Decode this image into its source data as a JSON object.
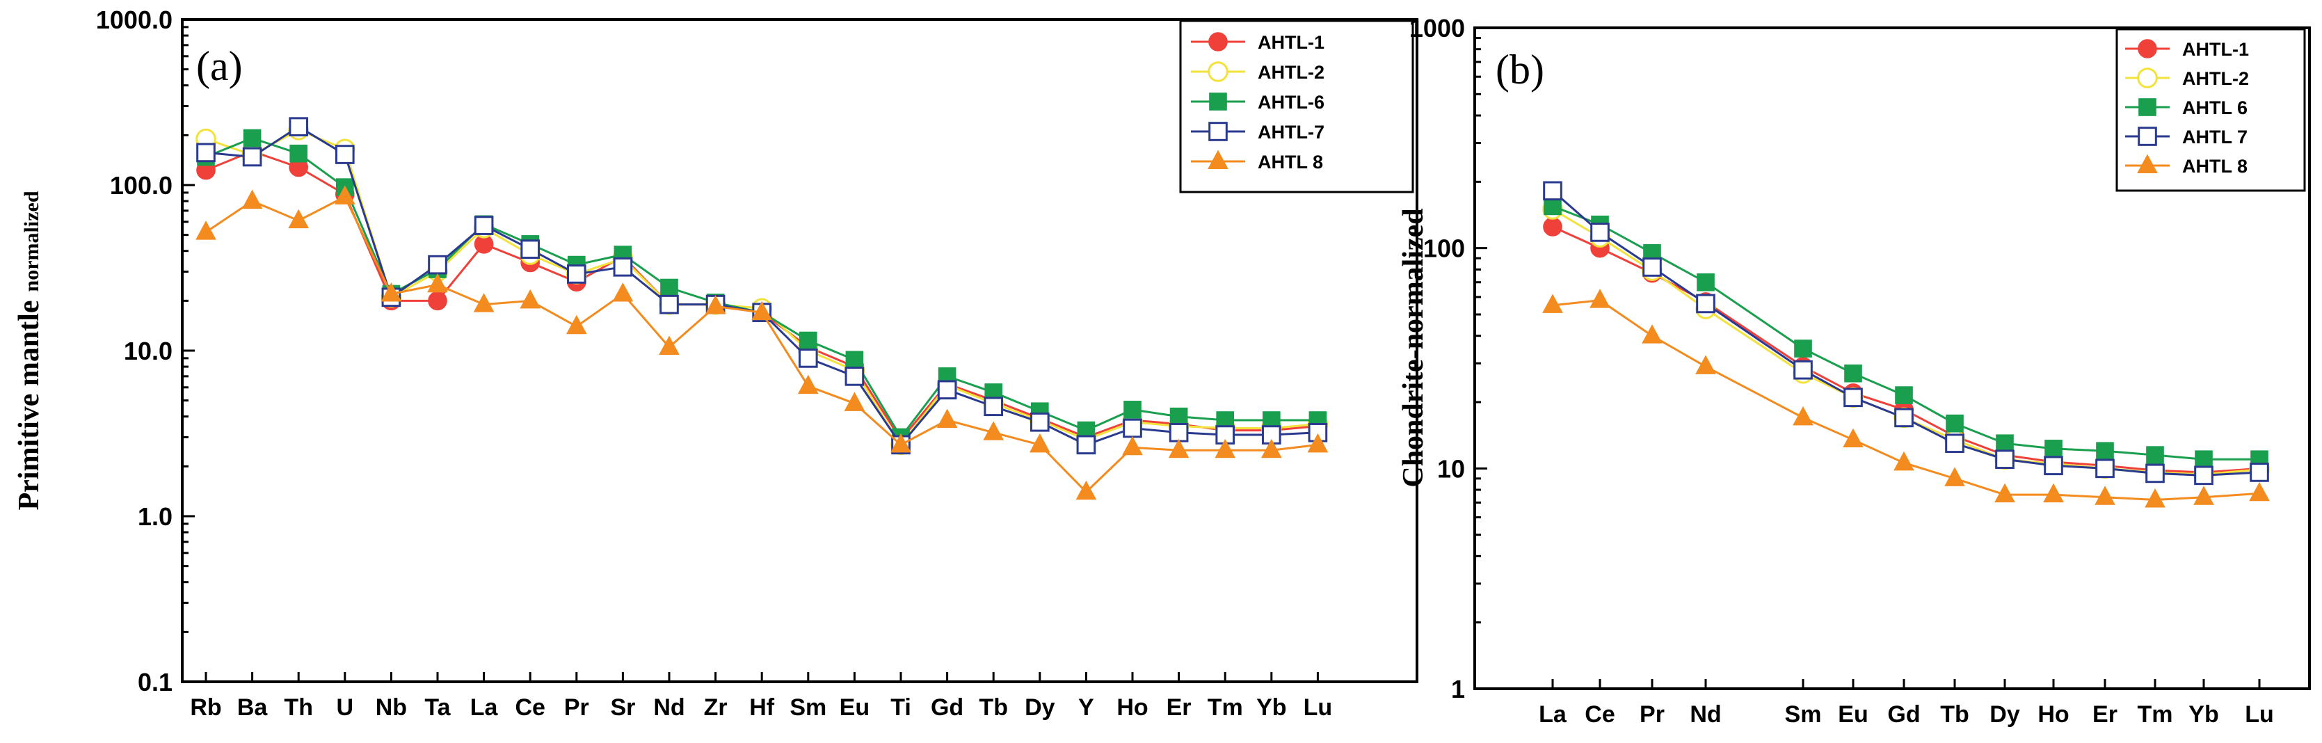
{
  "chart_data": [
    {
      "type": "line",
      "panel_label": "(a)",
      "title": "",
      "xlabel": "",
      "ylabel": "Primitive mantle",
      "ylabel_suffix": "normalized",
      "yscale": "log",
      "ylim": [
        0.1,
        1000
      ],
      "ytick_labels": [
        "0.1",
        "1.0",
        "10.0",
        "100.0",
        "1000.0"
      ],
      "categories": [
        "Rb",
        "Ba",
        "Th",
        "U",
        "Nb",
        "Ta",
        "La",
        "Ce",
        "Pr",
        "Sr",
        "Nd",
        "Zr",
        "Hf",
        "Sm",
        "Eu",
        "Ti",
        "Gd",
        "Tb",
        "Dy",
        "Y",
        "Ho",
        "Er",
        "Tm",
        "Yb",
        "Lu"
      ],
      "legend_position": "top-right",
      "series": [
        {
          "name": "AHTL-1",
          "color": "#f0403a",
          "marker": "circle-filled",
          "values": [
            123,
            160,
            128,
            88,
            20,
            20,
            44,
            34,
            26,
            37,
            19,
            19,
            17,
            10.5,
            8,
            2.9,
            6.3,
            5,
            3.9,
            3,
            3.8,
            3.6,
            3.3,
            3.3,
            3.5
          ]
        },
        {
          "name": "AHTL-2",
          "color": "#f3e23c",
          "marker": "circle-open",
          "values": [
            190,
            152,
            215,
            165,
            21,
            30,
            55,
            38,
            29,
            36,
            19,
            19,
            18,
            10,
            7.6,
            2.7,
            6.2,
            4.8,
            3.8,
            2.9,
            3.7,
            3.5,
            3.4,
            3.4,
            3.6
          ]
        },
        {
          "name": "AHTL-6",
          "color": "#1a9f4f",
          "marker": "square-filled",
          "values": [
            148,
            192,
            155,
            97,
            22,
            31,
            58,
            44,
            33,
            38,
            24,
            19.5,
            17,
            11.5,
            8.8,
            3,
            7,
            5.6,
            4.3,
            3.3,
            4.4,
            4,
            3.8,
            3.8,
            3.8
          ]
        },
        {
          "name": "AHTL-7",
          "color": "#2a3a8e",
          "marker": "square-open",
          "values": [
            157,
            148,
            225,
            153,
            21,
            33,
            57,
            41,
            29,
            32,
            19,
            19,
            17,
            9,
            7,
            2.7,
            5.8,
            4.6,
            3.7,
            2.7,
            3.4,
            3.2,
            3.1,
            3.1,
            3.2
          ]
        },
        {
          "name": "AHTL 8",
          "color": "#f38b1e",
          "marker": "triangle-filled",
          "values": [
            52,
            80,
            61,
            85,
            22,
            25,
            19,
            20,
            14,
            22,
            10.5,
            18.5,
            17,
            6.1,
            4.8,
            2.7,
            3.8,
            3.2,
            2.7,
            1.4,
            2.6,
            2.5,
            2.5,
            2.5,
            2.7
          ]
        }
      ]
    },
    {
      "type": "line",
      "panel_label": "(b)",
      "title": "",
      "xlabel": "",
      "ylabel": "Chondrite-normalized",
      "yscale": "log",
      "ylim": [
        1,
        1000
      ],
      "ytick_labels": [
        "1",
        "10",
        "100",
        "1000"
      ],
      "categories": [
        "La",
        "Ce",
        "Pr",
        "Nd",
        "Sm",
        "Eu",
        "Gd",
        "Tb",
        "Dy",
        "Ho",
        "Er",
        "Tm",
        "Yb",
        "Lu"
      ],
      "category_gap_after": "Nd",
      "legend_position": "top-right",
      "series": [
        {
          "name": "AHTL-1",
          "color": "#f0403a",
          "marker": "circle-filled",
          "values": [
            125,
            100,
            77,
            57,
            29,
            22,
            18.5,
            14,
            11.5,
            10.7,
            10.3,
            9.8,
            9.6,
            10
          ]
        },
        {
          "name": "AHTL-2",
          "color": "#f3e23c",
          "marker": "circle-open",
          "values": [
            150,
            112,
            79,
            53,
            27,
            21,
            17,
            13.5,
            11,
            10.5,
            10,
            9.6,
            9.4,
            9.9
          ]
        },
        {
          "name": "AHTL 6",
          "color": "#1a9f4f",
          "marker": "square-filled",
          "values": [
            155,
            128,
            95,
            70,
            35,
            27,
            21.5,
            16,
            13,
            12.3,
            12,
            11.5,
            11,
            11
          ]
        },
        {
          "name": "AHTL 7",
          "color": "#2a3a8e",
          "marker": "square-open",
          "values": [
            182,
            118,
            82,
            56,
            28,
            21,
            17,
            13,
            11,
            10.3,
            10,
            9.5,
            9.3,
            9.6
          ]
        },
        {
          "name": "AHTL 8",
          "color": "#f38b1e",
          "marker": "triangle-filled",
          "values": [
            55,
            58,
            40,
            29,
            17,
            13.5,
            10.6,
            9,
            7.6,
            7.6,
            7.4,
            7.2,
            7.4,
            7.7
          ]
        }
      ]
    }
  ]
}
